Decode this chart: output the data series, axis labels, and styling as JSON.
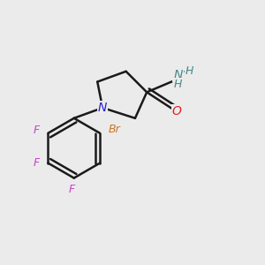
{
  "background_color": "#ebebeb",
  "bond_color": "#1a1a1a",
  "bond_width": 1.8,
  "figsize": [
    3.0,
    3.0
  ],
  "dpi": 100,
  "atoms": {
    "N": {
      "color": "#2222cc"
    },
    "O": {
      "color": "#dd2222"
    },
    "F": {
      "color": "#cc44cc"
    },
    "Br": {
      "color": "#cc7722"
    },
    "NH": {
      "color": "#448888"
    }
  },
  "font_size": 9,
  "xlim": [
    0.0,
    1.0
  ],
  "ylim": [
    0.05,
    0.95
  ]
}
